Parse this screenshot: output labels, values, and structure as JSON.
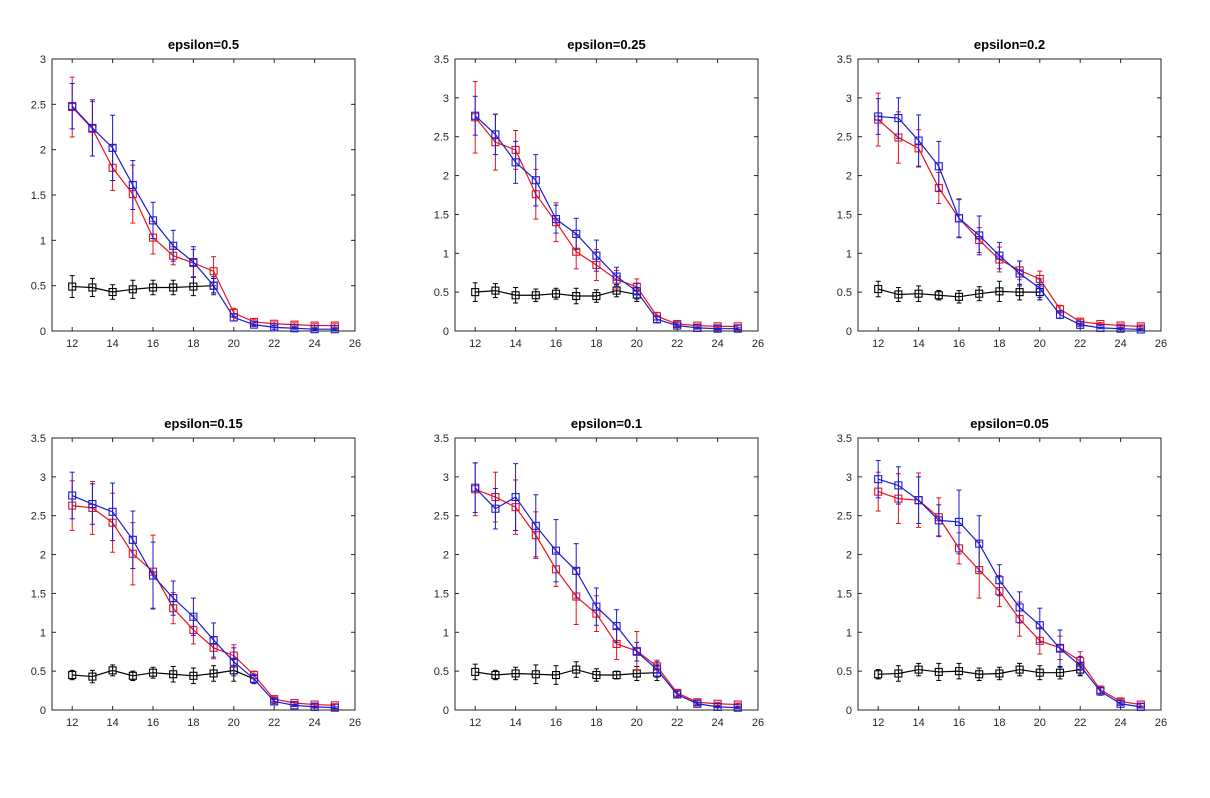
{
  "colors": {
    "black": "#000000",
    "red": "#e8121c",
    "blue": "#1a1ad6",
    "axis": "#262626"
  },
  "chart_data": [
    {
      "type": "line",
      "title": "epsilon=0.5",
      "x": [
        12,
        13,
        14,
        15,
        16,
        17,
        18,
        19,
        20,
        21,
        22,
        23,
        24,
        25
      ],
      "xlim": [
        11,
        26
      ],
      "xticks": [
        12,
        14,
        16,
        18,
        20,
        22,
        24,
        26
      ],
      "ylim": [
        0,
        3
      ],
      "yticks": [
        0,
        0.5,
        1,
        1.5,
        2,
        2.5,
        3
      ],
      "series": [
        {
          "name": "black",
          "color": "#000000",
          "values": [
            0.49,
            0.48,
            0.43,
            0.46,
            0.48,
            0.48,
            0.49,
            0.5,
            null,
            null,
            null,
            null,
            null,
            null
          ],
          "errors": [
            0.12,
            0.1,
            0.08,
            0.1,
            0.08,
            0.08,
            0.1,
            0.08,
            null,
            null,
            null,
            null,
            null,
            null
          ]
        },
        {
          "name": "red",
          "color": "#e8121c",
          "values": [
            2.47,
            2.23,
            1.8,
            1.51,
            1.03,
            0.83,
            0.75,
            0.66,
            0.2,
            0.1,
            0.08,
            0.07,
            0.06,
            0.06
          ],
          "errors": [
            0.33,
            0.3,
            0.25,
            0.32,
            0.18,
            0.1,
            0.15,
            0.16,
            0.05,
            0.03,
            0.02,
            0.02,
            0.02,
            0.02
          ]
        },
        {
          "name": "blue",
          "color": "#1a1ad6",
          "values": [
            2.48,
            2.24,
            2.02,
            1.61,
            1.22,
            0.94,
            0.76,
            0.5,
            0.15,
            0.07,
            0.04,
            0.03,
            0.02,
            0.02
          ],
          "errors": [
            0.25,
            0.31,
            0.36,
            0.27,
            0.2,
            0.17,
            0.17,
            0.1,
            0.04,
            0.02,
            0.02,
            0.01,
            0.01,
            0.01
          ]
        }
      ]
    },
    {
      "type": "line",
      "title": "epsilon=0.25",
      "x": [
        12,
        13,
        14,
        15,
        16,
        17,
        18,
        19,
        20,
        21,
        22,
        23,
        24,
        25
      ],
      "xlim": [
        11,
        26
      ],
      "xticks": [
        12,
        14,
        16,
        18,
        20,
        22,
        24,
        26
      ],
      "ylim": [
        0,
        3.5
      ],
      "yticks": [
        0,
        0.5,
        1,
        1.5,
        2,
        2.5,
        3,
        3.5
      ],
      "series": [
        {
          "name": "black",
          "color": "#000000",
          "values": [
            0.5,
            0.52,
            0.46,
            0.46,
            0.48,
            0.45,
            0.45,
            0.52,
            0.47,
            null,
            null,
            null,
            null,
            null
          ],
          "errors": [
            0.12,
            0.09,
            0.1,
            0.08,
            0.07,
            0.1,
            0.08,
            0.08,
            0.09,
            null,
            null,
            null,
            null,
            null
          ]
        },
        {
          "name": "red",
          "color": "#e8121c",
          "values": [
            2.75,
            2.43,
            2.33,
            1.76,
            1.4,
            1.02,
            0.85,
            0.66,
            0.57,
            0.19,
            0.09,
            0.07,
            0.06,
            0.06
          ],
          "errors": [
            0.46,
            0.36,
            0.25,
            0.32,
            0.25,
            0.22,
            0.2,
            0.12,
            0.1,
            0.05,
            0.03,
            0.02,
            0.02,
            0.02
          ]
        },
        {
          "name": "blue",
          "color": "#1a1ad6",
          "values": [
            2.77,
            2.53,
            2.17,
            1.94,
            1.44,
            1.25,
            0.97,
            0.7,
            0.51,
            0.15,
            0.07,
            0.04,
            0.03,
            0.03
          ],
          "errors": [
            0.25,
            0.26,
            0.27,
            0.33,
            0.18,
            0.2,
            0.2,
            0.12,
            0.1,
            0.04,
            0.02,
            0.01,
            0.01,
            0.01
          ]
        }
      ]
    },
    {
      "type": "line",
      "title": "epsilon=0.2",
      "x": [
        12,
        13,
        14,
        15,
        16,
        17,
        18,
        19,
        20,
        21,
        22,
        23,
        24,
        25
      ],
      "xlim": [
        11,
        26
      ],
      "xticks": [
        12,
        14,
        16,
        18,
        20,
        22,
        24,
        26
      ],
      "ylim": [
        0,
        3.5
      ],
      "yticks": [
        0,
        0.5,
        1,
        1.5,
        2,
        2.5,
        3,
        3.5
      ],
      "series": [
        {
          "name": "black",
          "color": "#000000",
          "values": [
            0.54,
            0.47,
            0.48,
            0.46,
            0.44,
            0.48,
            0.51,
            0.5,
            0.5,
            null,
            null,
            null,
            null,
            null
          ],
          "errors": [
            0.1,
            0.09,
            0.1,
            0.06,
            0.08,
            0.09,
            0.13,
            0.1,
            0.1,
            null,
            null,
            null,
            null,
            null
          ]
        },
        {
          "name": "red",
          "color": "#e8121c",
          "values": [
            2.72,
            2.49,
            2.35,
            1.84,
            1.45,
            1.17,
            0.92,
            0.78,
            0.67,
            0.28,
            0.12,
            0.09,
            0.07,
            0.06
          ],
          "errors": [
            0.34,
            0.33,
            0.24,
            0.2,
            0.24,
            0.16,
            0.16,
            0.12,
            0.1,
            0.05,
            0.03,
            0.02,
            0.02,
            0.02
          ]
        },
        {
          "name": "blue",
          "color": "#1a1ad6",
          "values": [
            2.76,
            2.74,
            2.45,
            2.12,
            1.45,
            1.23,
            0.97,
            0.74,
            0.55,
            0.21,
            0.08,
            0.04,
            0.03,
            0.02
          ],
          "errors": [
            0.23,
            0.26,
            0.33,
            0.32,
            0.25,
            0.25,
            0.17,
            0.16,
            0.12,
            0.05,
            0.02,
            0.01,
            0.01,
            0.01
          ]
        }
      ]
    },
    {
      "type": "line",
      "title": "epsilon=0.15",
      "x": [
        12,
        13,
        14,
        15,
        16,
        17,
        18,
        19,
        20,
        21,
        22,
        23,
        24,
        25
      ],
      "xlim": [
        11,
        26
      ],
      "xticks": [
        12,
        14,
        16,
        18,
        20,
        22,
        24,
        26
      ],
      "ylim": [
        0,
        3.5
      ],
      "yticks": [
        0,
        0.5,
        1,
        1.5,
        2,
        2.5,
        3,
        3.5
      ],
      "series": [
        {
          "name": "black",
          "color": "#000000",
          "values": [
            0.45,
            0.43,
            0.51,
            0.44,
            0.48,
            0.46,
            0.44,
            0.47,
            0.51,
            0.4,
            null,
            null,
            null,
            null
          ],
          "errors": [
            0.06,
            0.08,
            0.07,
            0.06,
            0.07,
            0.1,
            0.1,
            0.1,
            0.14,
            0.06,
            null,
            null,
            null,
            null
          ]
        },
        {
          "name": "red",
          "color": "#e8121c",
          "values": [
            2.63,
            2.6,
            2.41,
            2.01,
            1.78,
            1.31,
            1.03,
            0.8,
            0.7,
            0.45,
            0.14,
            0.09,
            0.07,
            0.06
          ],
          "errors": [
            0.32,
            0.34,
            0.38,
            0.4,
            0.47,
            0.2,
            0.18,
            0.14,
            0.14,
            0.05,
            0.03,
            0.02,
            0.02,
            0.02
          ]
        },
        {
          "name": "blue",
          "color": "#1a1ad6",
          "values": [
            2.76,
            2.65,
            2.55,
            2.19,
            1.73,
            1.44,
            1.2,
            0.9,
            0.62,
            0.4,
            0.11,
            0.06,
            0.04,
            0.03
          ],
          "errors": [
            0.3,
            0.26,
            0.37,
            0.37,
            0.43,
            0.22,
            0.24,
            0.22,
            0.18,
            0.06,
            0.03,
            0.01,
            0.01,
            0.01
          ]
        }
      ]
    },
    {
      "type": "line",
      "title": "epsilon=0.1",
      "x": [
        12,
        13,
        14,
        15,
        16,
        17,
        18,
        19,
        20,
        21,
        22,
        23,
        24,
        25
      ],
      "xlim": [
        11,
        26
      ],
      "xticks": [
        12,
        14,
        16,
        18,
        20,
        22,
        24,
        26
      ],
      "ylim": [
        0,
        3.5
      ],
      "yticks": [
        0,
        0.5,
        1,
        1.5,
        2,
        2.5,
        3,
        3.5
      ],
      "series": [
        {
          "name": "black",
          "color": "#000000",
          "values": [
            0.49,
            0.45,
            0.47,
            0.46,
            0.45,
            0.52,
            0.45,
            0.45,
            0.47,
            0.48,
            null,
            null,
            null,
            null
          ],
          "errors": [
            0.1,
            0.06,
            0.08,
            0.12,
            0.12,
            0.1,
            0.08,
            0.05,
            0.09,
            0.1,
            null,
            null,
            null,
            null
          ]
        },
        {
          "name": "red",
          "color": "#e8121c",
          "values": [
            2.84,
            2.74,
            2.61,
            2.25,
            1.81,
            1.46,
            1.24,
            0.85,
            0.76,
            0.56,
            0.22,
            0.1,
            0.08,
            0.07
          ],
          "errors": [
            0.34,
            0.32,
            0.35,
            0.3,
            0.22,
            0.36,
            0.23,
            0.2,
            0.25,
            0.08,
            0.04,
            0.03,
            0.02,
            0.02
          ]
        },
        {
          "name": "blue",
          "color": "#1a1ad6",
          "values": [
            2.86,
            2.59,
            2.74,
            2.37,
            2.05,
            1.79,
            1.33,
            1.08,
            0.75,
            0.52,
            0.2,
            0.08,
            0.04,
            0.03
          ],
          "errors": [
            0.32,
            0.26,
            0.43,
            0.4,
            0.4,
            0.35,
            0.24,
            0.21,
            0.12,
            0.1,
            0.04,
            0.02,
            0.01,
            0.01
          ]
        }
      ]
    },
    {
      "type": "line",
      "title": "epsilon=0.05",
      "x": [
        12,
        13,
        14,
        15,
        16,
        17,
        18,
        19,
        20,
        21,
        22,
        23,
        24,
        25
      ],
      "xlim": [
        11,
        26
      ],
      "xticks": [
        12,
        14,
        16,
        18,
        20,
        22,
        24,
        26
      ],
      "ylim": [
        0,
        3.5
      ],
      "yticks": [
        0,
        0.5,
        1,
        1.5,
        2,
        2.5,
        3,
        3.5
      ],
      "series": [
        {
          "name": "black",
          "color": "#000000",
          "values": [
            0.46,
            0.47,
            0.52,
            0.49,
            0.5,
            0.46,
            0.47,
            0.52,
            0.48,
            0.48,
            0.52,
            null,
            null,
            null
          ],
          "errors": [
            0.06,
            0.1,
            0.08,
            0.11,
            0.1,
            0.08,
            0.08,
            0.08,
            0.09,
            0.08,
            0.08,
            null,
            null,
            null
          ]
        },
        {
          "name": "red",
          "color": "#e8121c",
          "values": [
            2.81,
            2.72,
            2.7,
            2.48,
            2.08,
            1.8,
            1.53,
            1.17,
            0.89,
            0.8,
            0.63,
            0.26,
            0.11,
            0.07
          ],
          "errors": [
            0.25,
            0.32,
            0.35,
            0.25,
            0.2,
            0.36,
            0.2,
            0.22,
            0.17,
            0.15,
            0.12,
            0.05,
            0.03,
            0.02
          ]
        },
        {
          "name": "blue",
          "color": "#1a1ad6",
          "values": [
            2.97,
            2.89,
            2.7,
            2.44,
            2.42,
            2.14,
            1.67,
            1.32,
            1.09,
            0.79,
            0.57,
            0.24,
            0.08,
            0.04
          ],
          "errors": [
            0.24,
            0.24,
            0.3,
            0.2,
            0.41,
            0.36,
            0.2,
            0.2,
            0.22,
            0.24,
            0.12,
            0.05,
            0.02,
            0.01
          ]
        }
      ]
    }
  ]
}
